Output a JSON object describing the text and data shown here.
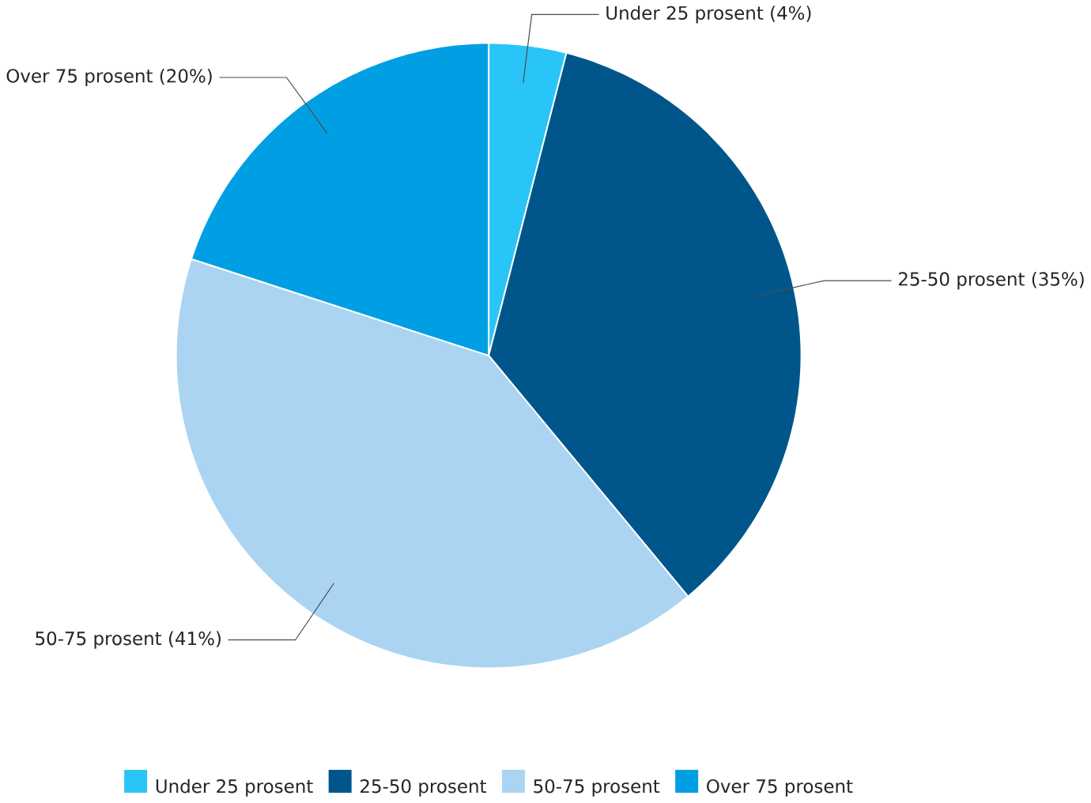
{
  "chart_data": {
    "type": "pie",
    "categories": [
      "Under 25 prosent",
      "25-50 prosent",
      "50-75 prosent",
      "Over 75 prosent"
    ],
    "values": [
      4,
      35,
      41,
      20
    ],
    "value_labels": [
      "(4%)",
      "(35%)",
      "(41%)",
      "(20%)"
    ],
    "colors": [
      "#29c5f6",
      "#00568a",
      "#aad4f2",
      "#009fe3"
    ],
    "legend": "bottom"
  }
}
